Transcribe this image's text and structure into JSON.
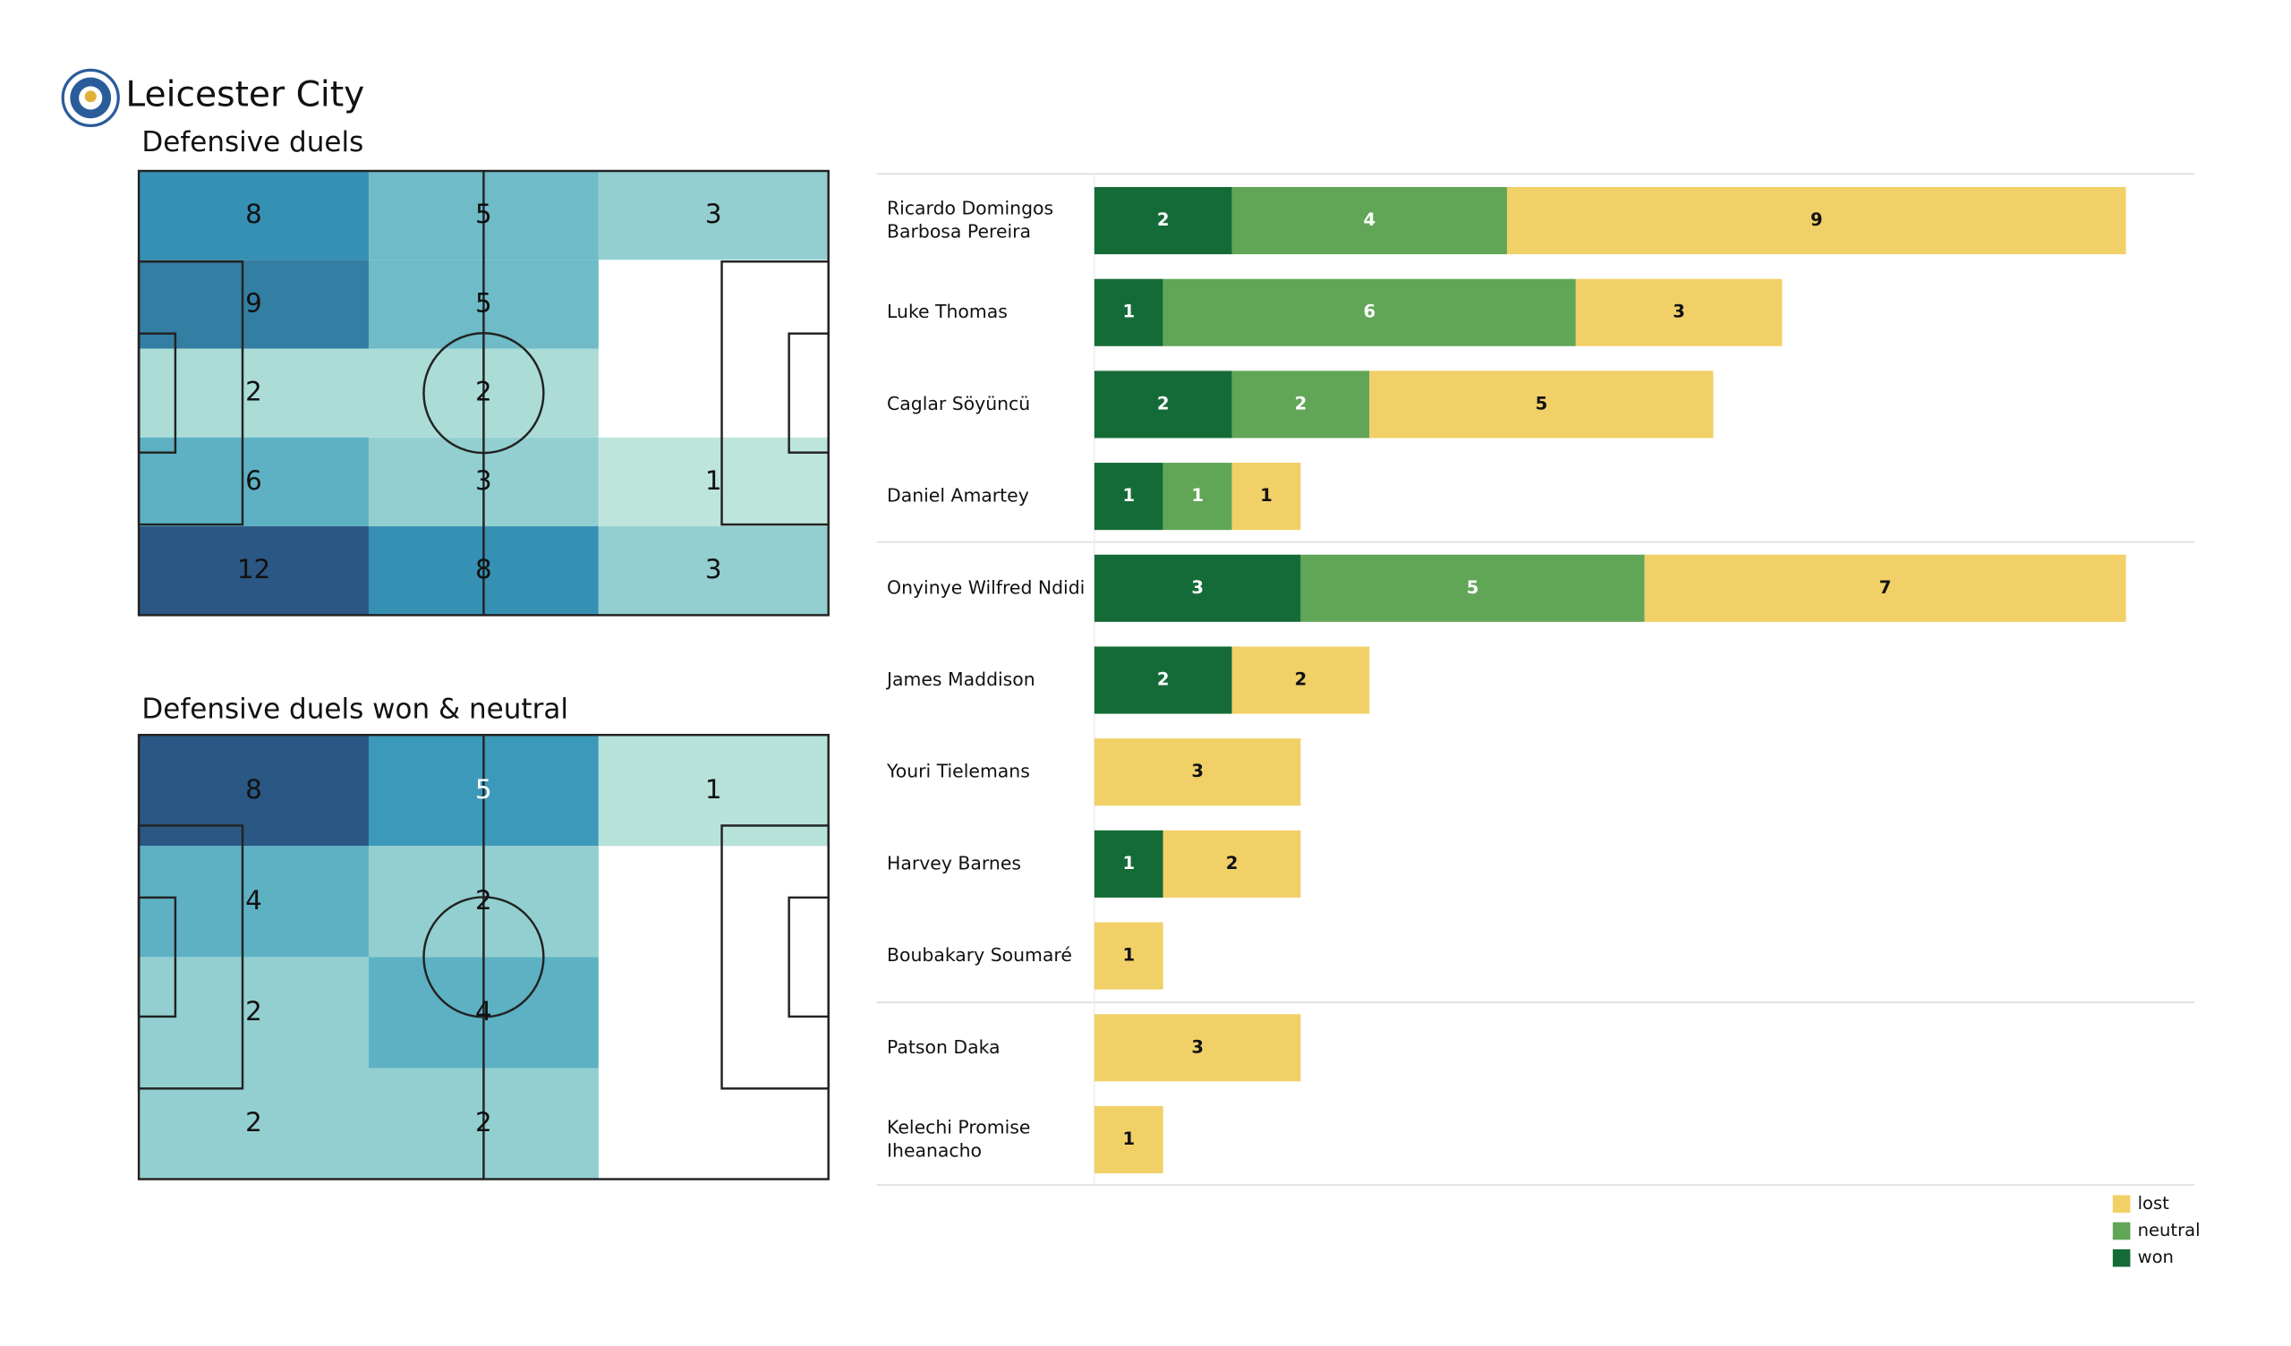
{
  "title": "Leicester City",
  "chart_data": [
    {
      "type": "heatmap",
      "title": "Defensive duels",
      "values": [
        [
          8,
          5,
          3
        ],
        [
          9,
          5,
          null
        ],
        [
          2,
          2,
          null
        ],
        [
          6,
          3,
          1
        ],
        [
          12,
          8,
          3
        ]
      ]
    },
    {
      "type": "heatmap",
      "title": "Defensive duels won & neutral",
      "values": [
        [
          8,
          5,
          1
        ],
        [
          4,
          2,
          null
        ],
        [
          2,
          4,
          null
        ],
        [
          2,
          2,
          null
        ]
      ]
    },
    {
      "type": "stacked_bar",
      "categories": [
        "Ricardo Domingos\nBarbosa Pereira",
        "Luke Thomas",
        "Caglar Söyüncü",
        "Daniel Amartey",
        "Onyinye Wilfred Ndidi",
        "James Maddison",
        "Youri Tielemans",
        "Harvey Barnes",
        "Boubakary Soumaré",
        "Patson Daka",
        "Kelechi Promise\nIheanacho"
      ],
      "series": [
        {
          "name": "won",
          "color": "#156b37",
          "values": [
            2,
            1,
            2,
            1,
            3,
            2,
            null,
            1,
            null,
            null,
            null
          ]
        },
        {
          "name": "neutral",
          "color": "#61a656",
          "values": [
            4,
            6,
            2,
            1,
            5,
            null,
            null,
            null,
            null,
            null,
            null
          ]
        },
        {
          "name": "lost",
          "color": "#f1d067",
          "values": [
            9,
            3,
            5,
            1,
            7,
            2,
            3,
            2,
            1,
            3,
            1
          ]
        }
      ]
    }
  ]
}
